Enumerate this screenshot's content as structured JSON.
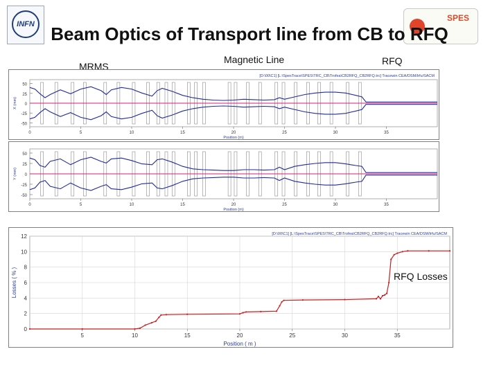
{
  "slide": {
    "title": "Beam Optics of Transport line from CB to RFQ",
    "labels": {
      "mrms": "MRMS",
      "magnetic_line": "Magnetic Line",
      "rfq": "RFQ",
      "rfq_losses": "RFQ Losses"
    }
  },
  "logos": {
    "left": "INFN",
    "right": "SPES"
  },
  "colors": {
    "envelope": "#1f2a9c",
    "center": "#e0197a",
    "losses": "#cc1c1c",
    "elements": "#8a8a8a"
  },
  "chart_data": [
    {
      "type": "line",
      "panel": "top-x",
      "ylabel": "X (mm)",
      "xlabel": "Position (m)",
      "xlim": [
        0,
        40
      ],
      "ylim": [
        -60,
        60
      ],
      "x_ticks": [
        "0",
        "5",
        "10",
        "15",
        "20",
        "25",
        "30",
        "35"
      ],
      "y_ticks": [
        "50",
        "25",
        "0",
        "-25",
        "-50"
      ],
      "header_text": "[D:\\00\\C1] [L:\\SpesTrace\\SPES\\TRC_CB\\Trofea\\CB2RFQ_CB2RFQ.trc]   Tracewin  CEA/DSM/Irfu/SACM",
      "series": [
        {
          "x": [
            0,
            0.5,
            1,
            1.5,
            2,
            3,
            4,
            5,
            6,
            7,
            7.5,
            8,
            9,
            10,
            11,
            12,
            12.5,
            13,
            14,
            15,
            16,
            17,
            18,
            19,
            20,
            21,
            22,
            23,
            24,
            24.5,
            25,
            26,
            27,
            28,
            29,
            30,
            31,
            32,
            32.6,
            33,
            34,
            35,
            36,
            38,
            40
          ],
          "values": [
            40,
            36,
            24,
            14,
            22,
            34,
            24,
            36,
            42,
            32,
            22,
            34,
            40,
            36,
            26,
            18,
            32,
            38,
            30,
            20,
            14,
            10,
            8,
            7,
            8,
            10,
            9,
            8,
            9,
            14,
            10,
            16,
            22,
            26,
            28,
            28,
            26,
            20,
            16,
            3,
            3,
            3,
            3,
            3,
            3
          ]
        },
        {
          "x": [
            0,
            0.5,
            1,
            1.5,
            2,
            3,
            4,
            5,
            6,
            7,
            7.5,
            8,
            9,
            10,
            11,
            12,
            12.5,
            13,
            14,
            15,
            16,
            17,
            18,
            19,
            20,
            21,
            22,
            23,
            24,
            24.5,
            25,
            26,
            27,
            28,
            29,
            30,
            31,
            32,
            32.6,
            33,
            34,
            35,
            36,
            38,
            40
          ],
          "values": [
            -40,
            -36,
            -24,
            -14,
            -22,
            -34,
            -24,
            -36,
            -42,
            -32,
            -22,
            -34,
            -40,
            -36,
            -26,
            -18,
            -32,
            -38,
            -30,
            -20,
            -14,
            -10,
            -8,
            -7,
            -8,
            -10,
            -9,
            -8,
            -9,
            -14,
            -10,
            -16,
            -22,
            -26,
            -28,
            -28,
            -26,
            -20,
            -16,
            -3,
            -3,
            -3,
            -3,
            -3,
            -3
          ]
        }
      ],
      "elements_at": [
        1.2,
        2.6,
        4.2,
        5.4,
        7.4,
        8.7,
        10.2,
        11.6,
        12.6,
        13.4,
        14.1,
        15.6,
        16.3,
        17.1,
        19.6,
        20.2,
        21.4,
        22.6,
        24.2,
        24.9,
        26.1,
        27.3,
        28.4,
        29.6,
        31.2,
        32.4
      ],
      "center_line": 0
    },
    {
      "type": "line",
      "panel": "middle-y",
      "ylabel": "Y (mm)",
      "xlabel": "Position (m)",
      "xlim": [
        0,
        40
      ],
      "ylim": [
        -60,
        60
      ],
      "x_ticks": [
        "0",
        "5",
        "10",
        "15",
        "20",
        "25",
        "30",
        "35"
      ],
      "y_ticks": [
        "50",
        "25",
        "0",
        "-25",
        "-50"
      ],
      "series": [
        {
          "x": [
            0,
            0.5,
            1,
            1.5,
            2,
            3,
            4,
            5,
            6,
            7,
            7.5,
            8,
            9,
            10,
            11,
            12,
            12.5,
            13,
            14,
            15,
            16,
            17,
            18,
            19,
            20,
            21,
            22,
            23,
            24,
            24.5,
            25,
            26,
            27,
            28,
            29,
            30,
            31,
            32,
            32.6,
            33,
            34,
            35,
            36,
            38,
            40
          ],
          "values": [
            38,
            34,
            20,
            16,
            30,
            36,
            22,
            34,
            40,
            30,
            26,
            36,
            38,
            32,
            24,
            22,
            34,
            36,
            28,
            18,
            12,
            10,
            9,
            8,
            8,
            10,
            10,
            9,
            10,
            16,
            10,
            18,
            22,
            25,
            27,
            27,
            24,
            20,
            18,
            3,
            3,
            3,
            3,
            3,
            3
          ]
        },
        {
          "x": [
            0,
            0.5,
            1,
            1.5,
            2,
            3,
            4,
            5,
            6,
            7,
            7.5,
            8,
            9,
            10,
            11,
            12,
            12.5,
            13,
            14,
            15,
            16,
            17,
            18,
            19,
            20,
            21,
            22,
            23,
            24,
            24.5,
            25,
            26,
            27,
            28,
            29,
            30,
            31,
            32,
            32.6,
            33,
            34,
            35,
            36,
            38,
            40
          ],
          "values": [
            -38,
            -34,
            -20,
            -16,
            -30,
            -36,
            -22,
            -34,
            -40,
            -30,
            -26,
            -36,
            -38,
            -32,
            -24,
            -22,
            -34,
            -36,
            -28,
            -18,
            -12,
            -10,
            -9,
            -8,
            -8,
            -10,
            -10,
            -9,
            -10,
            -16,
            -10,
            -18,
            -22,
            -25,
            -27,
            -27,
            -24,
            -20,
            -18,
            -3,
            -3,
            -3,
            -3,
            -3,
            -3
          ]
        }
      ],
      "elements_at": [
        1.2,
        2.6,
        4.2,
        5.4,
        7.4,
        8.7,
        10.2,
        11.6,
        12.6,
        13.4,
        14.1,
        15.6,
        16.3,
        17.1,
        19.6,
        20.2,
        21.4,
        22.6,
        24.2,
        24.9,
        26.1,
        27.3,
        28.4,
        29.6,
        31.2,
        32.4
      ],
      "center_line": 0
    },
    {
      "type": "line",
      "panel": "bottom-losses",
      "ylabel": "Losses ( % )",
      "xlabel": "Position ( m )",
      "xlim": [
        0,
        40
      ],
      "ylim": [
        0,
        12
      ],
      "x_ticks": [
        "5",
        "10",
        "15",
        "20",
        "25",
        "30",
        "35"
      ],
      "y_ticks": [
        "0",
        "2",
        "4",
        "6",
        "8",
        "10",
        "12"
      ],
      "header_text": "[D:\\00\\C1] [L:\\SpesTrace\\SPES\\TRC_CB\\Trofea\\CB2RFQ_CB2RFQ.trc]   Tracewin  CEA/DSM/Irfu/SACM",
      "series": [
        {
          "x": [
            0,
            5,
            10,
            10.5,
            11,
            11.6,
            12,
            12.3,
            12.5,
            13,
            15,
            20,
            20.3,
            20.6,
            22,
            23.5,
            23.8,
            24,
            24.2,
            26,
            30,
            33,
            33.2,
            33.4,
            33.6,
            33.8,
            34,
            34.2,
            34.4,
            34.7,
            35,
            35.5,
            36,
            38,
            40
          ],
          "values": [
            0,
            0,
            0,
            0.1,
            0.5,
            0.8,
            1,
            1.5,
            1.8,
            1.85,
            1.9,
            1.95,
            2.1,
            2.2,
            2.25,
            2.3,
            3,
            3.5,
            3.7,
            3.75,
            3.8,
            3.9,
            4.2,
            3.9,
            4.3,
            4.4,
            4.6,
            6,
            9,
            9.6,
            9.8,
            10,
            10.1,
            10.1,
            10.1
          ]
        }
      ]
    }
  ]
}
